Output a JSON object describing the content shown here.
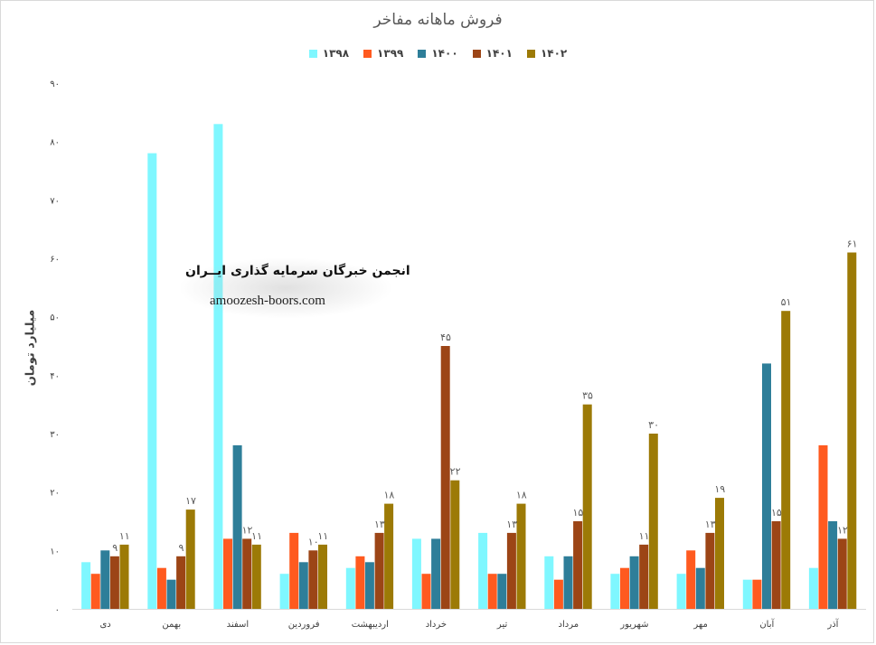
{
  "chart_data": {
    "type": "bar",
    "title": "فروش ماهانه مفاخر",
    "ylabel": "میلیارد تومان",
    "xlabel": "",
    "ylim": [
      0,
      90
    ],
    "yticks": [
      "۰",
      "۱۰",
      "۲۰",
      "۳۰",
      "۴۰",
      "۵۰",
      "۶۰",
      "۷۰",
      "۸۰",
      "۹۰"
    ],
    "grid": false,
    "legend_position": "top",
    "categories": [
      "دی",
      "بهمن",
      "اسفند",
      "فروردین",
      "اردیبهشت",
      "خرداد",
      "تیر",
      "مرداد",
      "شهریور",
      "مهر",
      "آبان",
      "آذر"
    ],
    "series": [
      {
        "name": "۱۳۹۸",
        "color": "#7ff7ff",
        "values": [
          8,
          78,
          83,
          6,
          7,
          12,
          13,
          9,
          6,
          6,
          5,
          7
        ]
      },
      {
        "name": "۱۳۹۹",
        "color": "#ff5a1f",
        "values": [
          6,
          7,
          12,
          13,
          9,
          6,
          6,
          5,
          7,
          10,
          5,
          28
        ]
      },
      {
        "name": "۱۴۰۰",
        "color": "#2e7e99",
        "values": [
          10,
          5,
          28,
          8,
          8,
          12,
          6,
          9,
          9,
          7,
          42,
          15
        ]
      },
      {
        "name": "۱۴۰۱",
        "color": "#9c4516",
        "values": [
          9,
          9,
          12,
          10,
          13,
          45,
          13,
          15,
          11,
          13,
          15,
          12
        ]
      },
      {
        "name": "۱۴۰۲",
        "color": "#9c7a06",
        "values": [
          11,
          17,
          11,
          11,
          18,
          22,
          18,
          35,
          30,
          19,
          51,
          61
        ]
      }
    ],
    "data_labels": [
      {
        "series": "۱۴۰۱",
        "category": "دی",
        "text": "۹"
      },
      {
        "series": "۱۴۰۲",
        "category": "دی",
        "text": "۱۱"
      },
      {
        "series": "۱۴۰۱",
        "category": "بهمن",
        "text": "۹"
      },
      {
        "series": "۱۴۰۲",
        "category": "بهمن",
        "text": "۱۷"
      },
      {
        "series": "۱۴۰۱",
        "category": "اسفند",
        "text": "۱۲"
      },
      {
        "series": "۱۴۰۲",
        "category": "اسفند",
        "text": "۱۱"
      },
      {
        "series": "۱۴۰۱",
        "category": "فروردین",
        "text": "۱۰"
      },
      {
        "series": "۱۴۰۲",
        "category": "فروردین",
        "text": "۱۱"
      },
      {
        "series": "۱۴۰۱",
        "category": "اردیبهشت",
        "text": "۱۳"
      },
      {
        "series": "۱۴۰۲",
        "category": "اردیبهشت",
        "text": "۱۸"
      },
      {
        "series": "۱۴۰۱",
        "category": "خرداد",
        "text": "۴۵"
      },
      {
        "series": "۱۴۰۲",
        "category": "خرداد",
        "text": "۲۲"
      },
      {
        "series": "۱۴۰۱",
        "category": "تیر",
        "text": "۱۳"
      },
      {
        "series": "۱۴۰۲",
        "category": "تیر",
        "text": "۱۸"
      },
      {
        "series": "۱۴۰۱",
        "category": "مرداد",
        "text": "۱۵"
      },
      {
        "series": "۱۴۰۲",
        "category": "مرداد",
        "text": "۳۵"
      },
      {
        "series": "۱۴۰۱",
        "category": "شهریور",
        "text": "۱۱"
      },
      {
        "series": "۱۴۰۲",
        "category": "شهریور",
        "text": "۳۰"
      },
      {
        "series": "۱۴۰۱",
        "category": "مهر",
        "text": "۱۳"
      },
      {
        "series": "۱۴۰۲",
        "category": "مهر",
        "text": "۱۹"
      },
      {
        "series": "۱۴۰۱",
        "category": "آبان",
        "text": "۱۵"
      },
      {
        "series": "۱۴۰۲",
        "category": "آبان",
        "text": "۵۱"
      },
      {
        "series": "۱۴۰۱",
        "category": "آذر",
        "text": "۱۲"
      },
      {
        "series": "۱۴۰۲",
        "category": "آذر",
        "text": "۶۱"
      }
    ]
  },
  "watermark": {
    "line1": "انجمن خبرگان سرمایه گذاری ایــران",
    "line2": "amoozesh-boors.com"
  }
}
